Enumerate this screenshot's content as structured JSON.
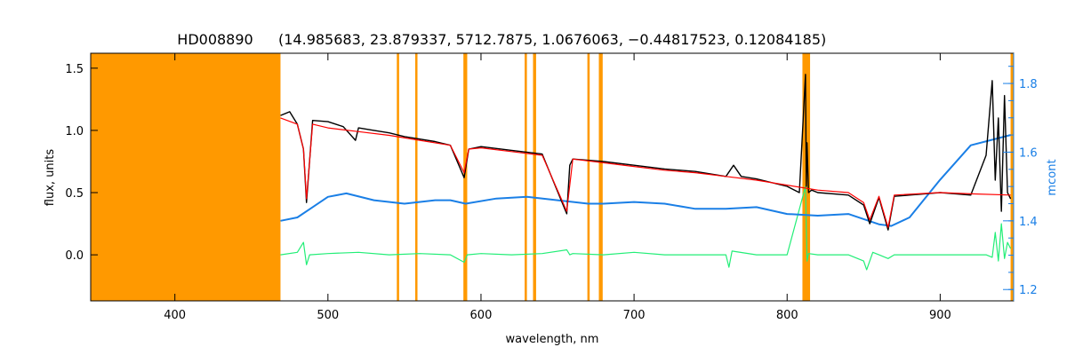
{
  "chart_data": {
    "type": "line",
    "title": {
      "star": "HD008890",
      "params": "(14.985683, 23.879337, 5712.7875, 1.0676063, −0.44817523, 0.12084185)"
    },
    "xlabel": "wavelength, nm",
    "ylabel": "flux, units",
    "ylabel_right": "mcont",
    "xlim": [
      345,
      948
    ],
    "ylim": [
      -0.37,
      1.62
    ],
    "ylim_right": [
      1.167,
      1.888
    ],
    "x_ticks": [
      400,
      500,
      600,
      700,
      800,
      900
    ],
    "y_ticks": [
      0.0,
      0.5,
      1.0,
      1.5
    ],
    "y_ticks_right": [
      1.2,
      1.4,
      1.6,
      1.8
    ],
    "masked_regions": [
      [
        345,
        469
      ],
      [
        545,
        546.5
      ],
      [
        557,
        558.5
      ],
      [
        588.5,
        591
      ],
      [
        628.5,
        630
      ],
      [
        634,
        636
      ],
      [
        669.5,
        671
      ],
      [
        677,
        679.5
      ],
      [
        810,
        815
      ],
      [
        946,
        948
      ]
    ],
    "series": [
      {
        "key": "observed",
        "color": "#000000",
        "axis": "left",
        "x": [
          469,
          475,
          480,
          484,
          486,
          490,
          500,
          510,
          518,
          520,
          530,
          540,
          550,
          560,
          570,
          580,
          589,
          592,
          600,
          620,
          640,
          656,
          658,
          660,
          680,
          700,
          720,
          740,
          760,
          765,
          770,
          780,
          800,
          808,
          812,
          812.5,
          813,
          814,
          816,
          820,
          840,
          850,
          854,
          860,
          866,
          870,
          880,
          900,
          920,
          930,
          934,
          936,
          938,
          940,
          942,
          944,
          946
        ],
        "y": [
          1.12,
          1.15,
          1.05,
          0.85,
          0.42,
          1.08,
          1.07,
          1.03,
          0.92,
          1.02,
          1.0,
          0.98,
          0.95,
          0.93,
          0.91,
          0.88,
          0.62,
          0.85,
          0.87,
          0.84,
          0.81,
          0.33,
          0.72,
          0.77,
          0.75,
          0.72,
          0.69,
          0.67,
          0.63,
          0.72,
          0.63,
          0.61,
          0.55,
          0.5,
          1.45,
          0.55,
          0.9,
          0.5,
          0.52,
          0.5,
          0.48,
          0.4,
          0.25,
          0.46,
          0.2,
          0.47,
          0.48,
          0.5,
          0.48,
          0.8,
          1.4,
          0.6,
          1.1,
          0.35,
          1.28,
          0.5,
          0.45
        ]
      },
      {
        "key": "model",
        "color": "#ff0000",
        "axis": "left",
        "x": [
          469,
          480,
          484,
          486,
          490,
          500,
          520,
          540,
          560,
          580,
          589,
          592,
          600,
          620,
          640,
          656,
          660,
          680,
          700,
          720,
          740,
          760,
          780,
          800,
          820,
          840,
          850,
          854,
          860,
          866,
          870,
          900,
          920,
          946
        ],
        "y": [
          1.1,
          1.05,
          0.85,
          0.45,
          1.05,
          1.02,
          0.99,
          0.96,
          0.92,
          0.88,
          0.66,
          0.85,
          0.86,
          0.83,
          0.8,
          0.35,
          0.77,
          0.74,
          0.71,
          0.68,
          0.66,
          0.63,
          0.6,
          0.56,
          0.52,
          0.5,
          0.42,
          0.28,
          0.47,
          0.22,
          0.48,
          0.5,
          0.49,
          0.48
        ]
      },
      {
        "key": "mcont",
        "color": "#1a7fe6",
        "axis": "right",
        "x": [
          469,
          480,
          490,
          500,
          512,
          530,
          550,
          570,
          580,
          590,
          610,
          630,
          650,
          670,
          680,
          700,
          720,
          740,
          760,
          780,
          800,
          820,
          840,
          860,
          868,
          880,
          900,
          920,
          946
        ],
        "y": [
          1.4,
          1.41,
          1.44,
          1.47,
          1.48,
          1.46,
          1.45,
          1.46,
          1.46,
          1.45,
          1.465,
          1.47,
          1.46,
          1.45,
          1.45,
          1.455,
          1.45,
          1.435,
          1.435,
          1.44,
          1.42,
          1.415,
          1.42,
          1.39,
          1.385,
          1.41,
          1.52,
          1.62,
          1.65
        ]
      },
      {
        "key": "residuals",
        "color": "#22ee77",
        "axis": "left",
        "x": [
          469,
          480,
          484,
          486,
          488,
          500,
          520,
          540,
          560,
          580,
          589,
          591,
          600,
          620,
          640,
          656,
          658,
          660,
          680,
          700,
          720,
          740,
          760,
          762,
          764,
          780,
          800,
          812,
          813,
          814,
          820,
          840,
          850,
          852,
          856,
          860,
          866,
          870,
          900,
          920,
          930,
          934,
          936,
          938,
          940,
          942,
          944,
          946
        ],
        "y": [
          0.0,
          0.02,
          0.1,
          -0.08,
          0.0,
          0.01,
          0.02,
          0.0,
          0.01,
          0.0,
          -0.06,
          0.0,
          0.01,
          0.0,
          0.01,
          0.04,
          0.0,
          0.01,
          0.0,
          0.02,
          0.0,
          0.0,
          0.0,
          -0.1,
          0.03,
          0.0,
          0.0,
          0.55,
          -0.05,
          0.01,
          0.0,
          0.0,
          -0.05,
          -0.12,
          0.02,
          0.0,
          -0.03,
          0.0,
          0.0,
          0.0,
          0.0,
          -0.02,
          0.18,
          -0.05,
          0.25,
          -0.03,
          0.1,
          0.05
        ]
      }
    ]
  }
}
